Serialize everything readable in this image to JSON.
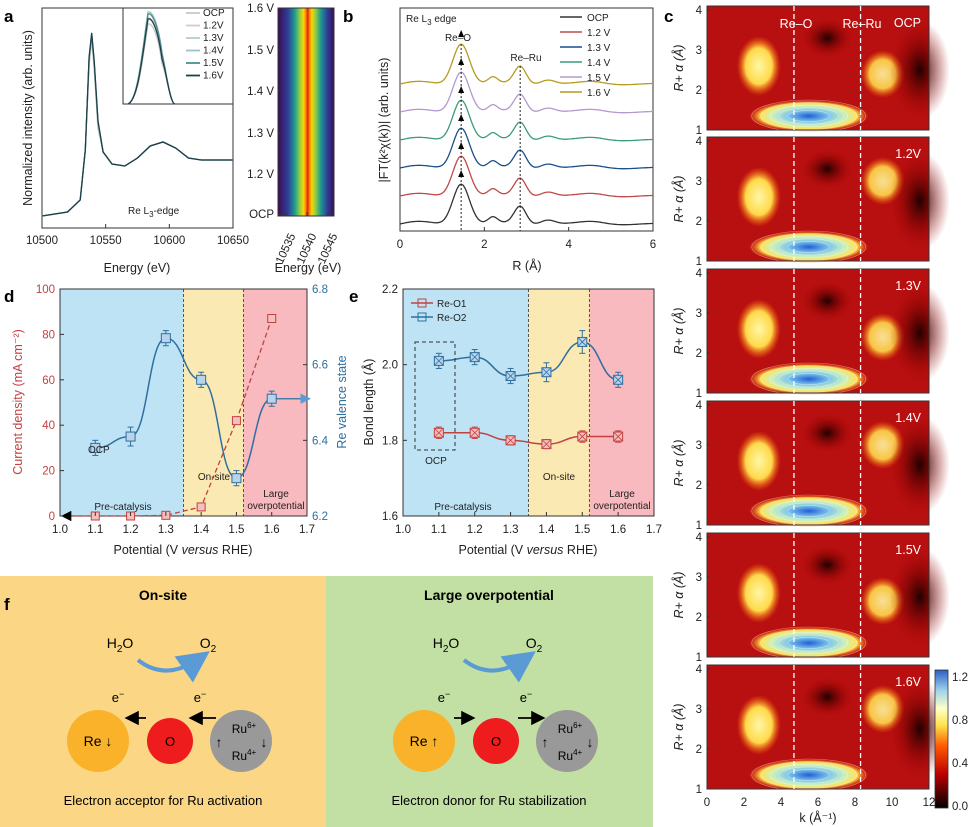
{
  "panel_labels": {
    "a": "a",
    "b": "b",
    "c": "c",
    "d": "d",
    "e": "e",
    "f": "f"
  },
  "chart_data": [
    {
      "id": "a",
      "type": "line",
      "xlabel": "Energy (eV)",
      "ylabel": "Normalized intensity (arb. units)",
      "annotation_prefix": "Re L",
      "annotation_sub": "3",
      "annotation_suffix": "-edge",
      "xlim": [
        10500,
        10650
      ],
      "xticks": [
        "10500",
        "10550",
        "10600",
        "10650"
      ],
      "x": [
        10500,
        10520,
        10530,
        10534,
        10537,
        10539,
        10541,
        10544,
        10548,
        10555,
        10565,
        10575,
        10585,
        10595,
        10605,
        10615,
        10625,
        10635,
        10650
      ],
      "y": [
        0.02,
        0.04,
        0.1,
        0.35,
        0.8,
        0.92,
        0.78,
        0.48,
        0.34,
        0.28,
        0.27,
        0.31,
        0.37,
        0.39,
        0.36,
        0.31,
        0.3,
        0.3,
        0.3
      ],
      "series": [
        {
          "name": "OCP",
          "color": "#c8c8c8"
        },
        {
          "name": "1.2V",
          "color": "#e0c6c1"
        },
        {
          "name": "1.3V",
          "color": "#b8d0c2"
        },
        {
          "name": "1.4V",
          "color": "#9ac4bd"
        },
        {
          "name": "1.5V",
          "color": "#4d8f8c"
        },
        {
          "name": "1.6V",
          "color": "#1f3f4a"
        }
      ],
      "inset_y": [
        0.8,
        0.86,
        0.9,
        0.92,
        0.9,
        0.85
      ]
    },
    {
      "id": "a-heatmap",
      "type": "heatmap",
      "xlabel": "Energy (eV)",
      "xticks": [
        "10535",
        "10540",
        "10545"
      ],
      "yticks": [
        "OCP",
        "1.2 V",
        "1.3 V",
        "1.4 V",
        "1.5 V",
        "1.6 V"
      ],
      "peak_energy": [
        10539.5,
        10539.6,
        10539.8,
        10540.0,
        10539.8,
        10539.6
      ]
    },
    {
      "id": "b",
      "type": "line",
      "title_prefix": "Re L",
      "title_sub": "3",
      "title_suffix": " edge",
      "xlabel": "R (Å)",
      "ylabel": "|FT(k²χ(k))| (arb. units)",
      "xlim": [
        0,
        6
      ],
      "xticks": [
        "0",
        "2",
        "4",
        "6"
      ],
      "annotations": [
        "Re–O",
        "Re–Ru"
      ],
      "peak_positions": [
        1.45,
        2.85
      ],
      "series": [
        {
          "name": "OCP",
          "color": "#333333",
          "offset": 0
        },
        {
          "name": "1.2 V",
          "color": "#c04848",
          "offset": 1
        },
        {
          "name": "1.3 V",
          "color": "#1a4f8a",
          "offset": 2
        },
        {
          "name": "1.4 V",
          "color": "#3b9c78",
          "offset": 3
        },
        {
          "name": "1.5 V",
          "color": "#b498cf",
          "offset": 4
        },
        {
          "name": "1.6 V",
          "color": "#b79a22",
          "offset": 5
        }
      ]
    },
    {
      "id": "c",
      "type": "heatmap",
      "xlabel": "k (Å⁻¹)",
      "ylabel": "R+ α (Å)",
      "xticks": [
        "0",
        "2",
        "4",
        "6",
        "8",
        "10",
        "12"
      ],
      "yticks": [
        "1",
        "2",
        "3",
        "4"
      ],
      "annotations": [
        "Re–O",
        "Re–Ru"
      ],
      "marker_k": [
        4.7,
        8.3
      ],
      "colorbar": {
        "ticks": [
          "1.2",
          "0.8",
          "0.4",
          "0.0"
        ],
        "range": [
          0,
          1.2
        ]
      },
      "panels": [
        "OCP",
        "1.2V",
        "1.3V",
        "1.4V",
        "1.5V",
        "1.6V"
      ]
    },
    {
      "id": "d",
      "type": "line",
      "xlabel_prefix": "Potential (V ",
      "xlabel_italic": "versus",
      "xlabel_suffix": " RHE)",
      "ylabel_left": "Current density (mA cm⁻²)",
      "ylabel_right": "Re valence state",
      "xlim": [
        1.0,
        1.7
      ],
      "ylim_left": [
        0,
        100
      ],
      "ylim_right": [
        6.2,
        6.8
      ],
      "xticks": [
        "1.0",
        "1.1",
        "1.2",
        "1.3",
        "1.4",
        "1.5",
        "1.6",
        "1.7"
      ],
      "yticks_left": [
        "0",
        "20",
        "40",
        "60",
        "80",
        "100"
      ],
      "yticks_right": [
        "6.2",
        "6.4",
        "6.6",
        "6.8"
      ],
      "regions": [
        {
          "label": "Pre-catalysis",
          "from": 1.0,
          "to": 1.35,
          "color": "#bde3f5"
        },
        {
          "label": "On-site",
          "from": 1.35,
          "to": 1.52,
          "color": "#fbe9b3"
        },
        {
          "label": "Large overpotential",
          "from": 1.52,
          "to": 1.7,
          "color": "#f8b9bf"
        }
      ],
      "ocp_label": "OCP",
      "current_density": {
        "x": [
          1.1,
          1.2,
          1.3,
          1.4,
          1.5,
          1.6
        ],
        "y": [
          0,
          0,
          0.3,
          4,
          42,
          87
        ],
        "color": "#c24141"
      },
      "valence_state": {
        "x": [
          1.1,
          1.2,
          1.3,
          1.4,
          1.5,
          1.6
        ],
        "y": [
          6.38,
          6.41,
          6.67,
          6.56,
          6.3,
          6.51
        ],
        "err": [
          0.02,
          0.025,
          0.02,
          0.02,
          0.02,
          0.02
        ],
        "color": "#2f6fa0"
      }
    },
    {
      "id": "e",
      "type": "line",
      "xlabel_prefix": "Potential (V ",
      "xlabel_italic": "versus",
      "xlabel_suffix": " RHE)",
      "ylabel": "Bond length (Å)",
      "xlim": [
        1.0,
        1.7
      ],
      "ylim": [
        1.6,
        2.2
      ],
      "xticks": [
        "1.0",
        "1.1",
        "1.2",
        "1.3",
        "1.4",
        "1.5",
        "1.6",
        "1.7"
      ],
      "yticks": [
        "1.6",
        "1.8",
        "2.0",
        "2.2"
      ],
      "regions": [
        {
          "label": "Pre-catalysis",
          "from": 1.0,
          "to": 1.35,
          "color": "#bde3f5"
        },
        {
          "label": "On-site",
          "from": 1.35,
          "to": 1.52,
          "color": "#fbe9b3"
        },
        {
          "label": "Large overpotential",
          "from": 1.52,
          "to": 1.7,
          "color": "#f8b9bf"
        }
      ],
      "ocp_label": "OCP",
      "series": [
        {
          "name": "Re-O1",
          "color": "#c24141",
          "x": [
            1.1,
            1.2,
            1.3,
            1.4,
            1.5,
            1.6
          ],
          "y": [
            1.82,
            1.82,
            1.8,
            1.79,
            1.81,
            1.81
          ],
          "err": [
            0.015,
            0.015,
            0.012,
            0.012,
            0.015,
            0.015
          ]
        },
        {
          "name": "Re-O2",
          "color": "#2f6fa0",
          "x": [
            1.1,
            1.2,
            1.3,
            1.4,
            1.5,
            1.6
          ],
          "y": [
            2.01,
            2.02,
            1.97,
            1.98,
            2.06,
            1.96
          ],
          "err": [
            0.02,
            0.02,
            0.02,
            0.025,
            0.03,
            0.02
          ]
        }
      ]
    }
  ],
  "schematic": {
    "left": {
      "title": "On-site",
      "reactant": "H",
      "reactant_sub": "2",
      "reactant_suffix": "O",
      "product": "O",
      "product_sub": "2",
      "electron1": "e",
      "electron1_sup": "−",
      "electron2": "e",
      "electron2_sup": "−",
      "atom_re": "Re",
      "atom_re_arrow": "↓",
      "atom_o": "O",
      "atom_ru_top": "Ru",
      "atom_ru_top_sup": "6+",
      "atom_ru_bottom": "Ru",
      "atom_ru_bottom_sup": "4+",
      "atom_ru_arrow_left": "↑",
      "atom_ru_arrow_right": "↓",
      "caption": "Electron acceptor for Ru activation",
      "bg": "#fbd785"
    },
    "right": {
      "title": "Large overpotential",
      "reactant": "H",
      "reactant_sub": "2",
      "reactant_suffix": "O",
      "product": "O",
      "product_sub": "2",
      "electron1": "e",
      "electron1_sup": "−",
      "electron2": "e",
      "electron2_sup": "−",
      "atom_re": "Re",
      "atom_re_arrow": "↑",
      "atom_o": "O",
      "atom_ru_top": "Ru",
      "atom_ru_top_sup": "6+",
      "atom_ru_bottom": "Ru",
      "atom_ru_bottom_sup": "4+",
      "atom_ru_arrow_left": "↑",
      "atom_ru_arrow_right": "↓",
      "caption": "Electron donor for Ru stabilization",
      "bg": "#c2dfa4"
    }
  }
}
